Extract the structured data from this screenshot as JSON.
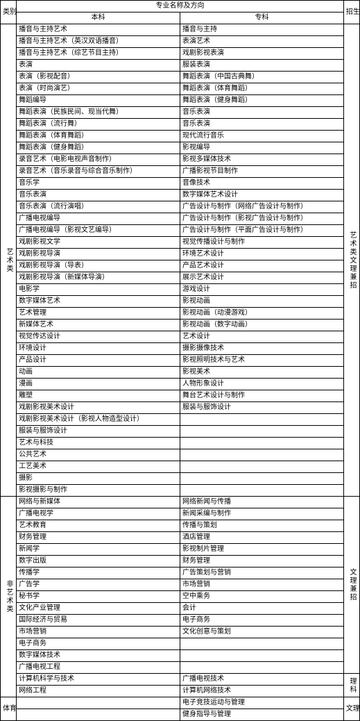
{
  "headers": {
    "category": "类别",
    "major_direction": "专业名称及方向",
    "bk": "本科",
    "zk": "专科",
    "admission": "招生科类"
  },
  "cat_art": "艺术类",
  "cat_nonart": "非艺术类",
  "cat_sport": "体育类",
  "adm_art": "艺术类文理兼招",
  "adm_wl": "文理兼招",
  "adm_li": "理科",
  "adm_wl2": "文理兼招",
  "art_rows": [
    {
      "bk": "播音与主持艺术",
      "zk": "播音与主持"
    },
    {
      "bk": "播音与主持艺术（英汉双语播音）",
      "zk": "表演艺术"
    },
    {
      "bk": "播音与主持艺术（综艺节目主持）",
      "zk": "戏剧影视表演"
    },
    {
      "bk": "表演",
      "zk": "服装表演"
    },
    {
      "bk": "表演（影视配音）",
      "zk": "舞蹈表演（中国古典舞）"
    },
    {
      "bk": "表演（时尚演艺）",
      "zk": "舞蹈表演（体育舞蹈）"
    },
    {
      "bk": "舞蹈编导",
      "zk": "舞蹈表演（健身舞蹈）"
    },
    {
      "bk": "舞蹈表演（民族民间、现当代舞）",
      "zk": "音乐表演"
    },
    {
      "bk": "舞蹈表演（流行舞）",
      "zk": "音乐表演"
    },
    {
      "bk": "舞蹈表演（体育舞蹈）",
      "zk": "现代流行音乐"
    },
    {
      "bk": "舞蹈表演（健身舞蹈）",
      "zk": "影视编导"
    },
    {
      "bk": "录音艺术（电影电视声音制作）",
      "zk": "影视多媒体技术"
    },
    {
      "bk": "录音艺术（音乐录音与综合音乐制作）",
      "zk": "广播影视节目制作"
    },
    {
      "bk": "音乐学",
      "zk": "音像技术"
    },
    {
      "bk": "音乐表演",
      "zk": "数字媒体艺术设计"
    },
    {
      "bk": "音乐表演（流行演唱）",
      "zk": "广告设计与制作（网络广告设计与制作）"
    },
    {
      "bk": "广播电视编导",
      "zk": "广告设计与制作（影视广告设计与制作）"
    },
    {
      "bk": "广播电视编导（影视文艺编导）",
      "zk": "广告设计与制作（平面广告设计与制作）"
    },
    {
      "bk": "戏剧影视文学",
      "zk": "视觉传播设计与制作"
    },
    {
      "bk": "戏剧影视导演",
      "zk": "环境艺术设计"
    },
    {
      "bk": "戏剧影视导演（导表）",
      "zk": "产品艺术设计"
    },
    {
      "bk": "戏剧影视导演（新媒体导演）",
      "zk": "展示艺术设计"
    },
    {
      "bk": "电影学",
      "zk": "游戏设计"
    },
    {
      "bk": "数字媒体艺术",
      "zk": "影视动画"
    },
    {
      "bk": "艺术管理",
      "zk": "影视动画（动漫游戏）"
    },
    {
      "bk": "新媒体艺术",
      "zk": "影视动画（数字动画）"
    },
    {
      "bk": "视觉传达设计",
      "zk": "艺术设计"
    },
    {
      "bk": "环境设计",
      "zk": "摄影摄像技术"
    },
    {
      "bk": "产品设计",
      "zk": "影视照明技术与艺术"
    },
    {
      "bk": "动画",
      "zk": "影视美术"
    },
    {
      "bk": "漫画",
      "zk": "人物形象设计"
    },
    {
      "bk": "雕塑",
      "zk": "舞台艺术设计与制作"
    },
    {
      "bk": "戏剧影视美术设计",
      "zk": "服装与服饰设计"
    },
    {
      "bk": "戏剧影视美术设计（影视人物造型设计）",
      "zk": ""
    },
    {
      "bk": "服装与服饰设计",
      "zk": ""
    },
    {
      "bk": "艺术与科技",
      "zk": ""
    },
    {
      "bk": "公共艺术",
      "zk": ""
    },
    {
      "bk": "工艺美术",
      "zk": ""
    },
    {
      "bk": "摄影",
      "zk": ""
    },
    {
      "bk": "影视摄影与制作",
      "zk": ""
    }
  ],
  "nonart_wl_rows": [
    {
      "bk": "网络与新媒体",
      "zk": "网络新闻与传播"
    },
    {
      "bk": "广播电视学",
      "zk": "新闻采编与制作"
    },
    {
      "bk": "艺术教育",
      "zk": "传播与策划"
    },
    {
      "bk": "财务管理",
      "zk": "酒店管理"
    },
    {
      "bk": "新闻学",
      "zk": "影视制片管理"
    },
    {
      "bk": "数字出版",
      "zk": "财务管理"
    },
    {
      "bk": "传播学",
      "zk": "广告策划与营销"
    },
    {
      "bk": "广告学",
      "zk": "市场营销"
    },
    {
      "bk": "秘书学",
      "zk": "空中乘务"
    },
    {
      "bk": "文化产业管理",
      "zk": "会计"
    },
    {
      "bk": "国际经济与贸易",
      "zk": "电子商务"
    },
    {
      "bk": "市场营销",
      "zk": "文化创意与策划"
    },
    {
      "bk": "电子商务",
      "zk": ""
    },
    {
      "bk": "数字媒体技术",
      "zk": ""
    },
    {
      "bk": "广播电视工程",
      "zk": ""
    }
  ],
  "nonart_li_rows": [
    {
      "bk": "计算机科学与技术",
      "zk": "广播电视技术"
    },
    {
      "bk": "网络工程",
      "zk": "计算机网络技术"
    }
  ],
  "sport_rows": [
    {
      "bk": "",
      "zk": "电子竞技运动与管理"
    },
    {
      "bk": "",
      "zk": "健身指导与管理"
    }
  ]
}
